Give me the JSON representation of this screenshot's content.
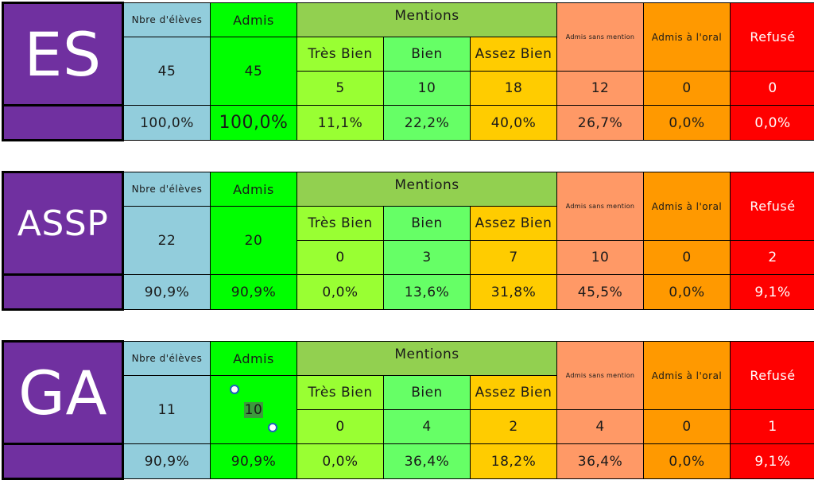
{
  "headers": {
    "nb_eleves": "Nbre d'élèves",
    "admis": "Admis",
    "mentions": "Mentions",
    "tres_bien": "Très Bien",
    "bien": "Bien",
    "assez_bien": "Assez Bien",
    "admis_sans_mention": "Admis sans mention",
    "admis_oral": "Admis à l'oral",
    "refuse": "Refusé"
  },
  "blocks": [
    {
      "name": "ES",
      "counts": {
        "eleves": "45",
        "admis": "45",
        "tres_bien": "5",
        "bien": "10",
        "assez_bien": "18",
        "sans_mention": "12",
        "oral": "0",
        "refuse": "0"
      },
      "percents": {
        "eleves": "100,0%",
        "admis": "100,0%",
        "tres_bien": "11,1%",
        "bien": "22,2%",
        "assez_bien": "40,0%",
        "sans_mention": "26,7%",
        "oral": "0,0%",
        "refuse": "0,0%"
      }
    },
    {
      "name": "ASSP",
      "counts": {
        "eleves": "22",
        "admis": "20",
        "tres_bien": "0",
        "bien": "3",
        "assez_bien": "7",
        "sans_mention": "10",
        "oral": "0",
        "refuse": "2"
      },
      "percents": {
        "eleves": "90,9%",
        "admis": "90,9%",
        "tres_bien": "0,0%",
        "bien": "13,6%",
        "assez_bien": "31,8%",
        "sans_mention": "45,5%",
        "oral": "0,0%",
        "refuse": "9,1%"
      }
    },
    {
      "name": "GA",
      "counts": {
        "eleves": "11",
        "admis": "10",
        "tres_bien": "0",
        "bien": "4",
        "assez_bien": "2",
        "sans_mention": "4",
        "oral": "0",
        "refuse": "1"
      },
      "percents": {
        "eleves": "90,9%",
        "admis": "90,9%",
        "tres_bien": "0,0%",
        "bien": "36,4%",
        "assez_bien": "18,2%",
        "sans_mention": "36,4%",
        "oral": "0,0%",
        "refuse": "9,1%"
      }
    }
  ],
  "colors": {
    "name_bg": "#7030a0",
    "nb_eleves": "#92cddc",
    "admis": "#00ff00",
    "mentions": "#92d050",
    "tres_bien": "#99ff33",
    "bien": "#66ff66",
    "assez_bien": "#ffcc00",
    "sans_mention": "#ff9966",
    "oral": "#ff9900",
    "refuse": "#ff0000"
  }
}
